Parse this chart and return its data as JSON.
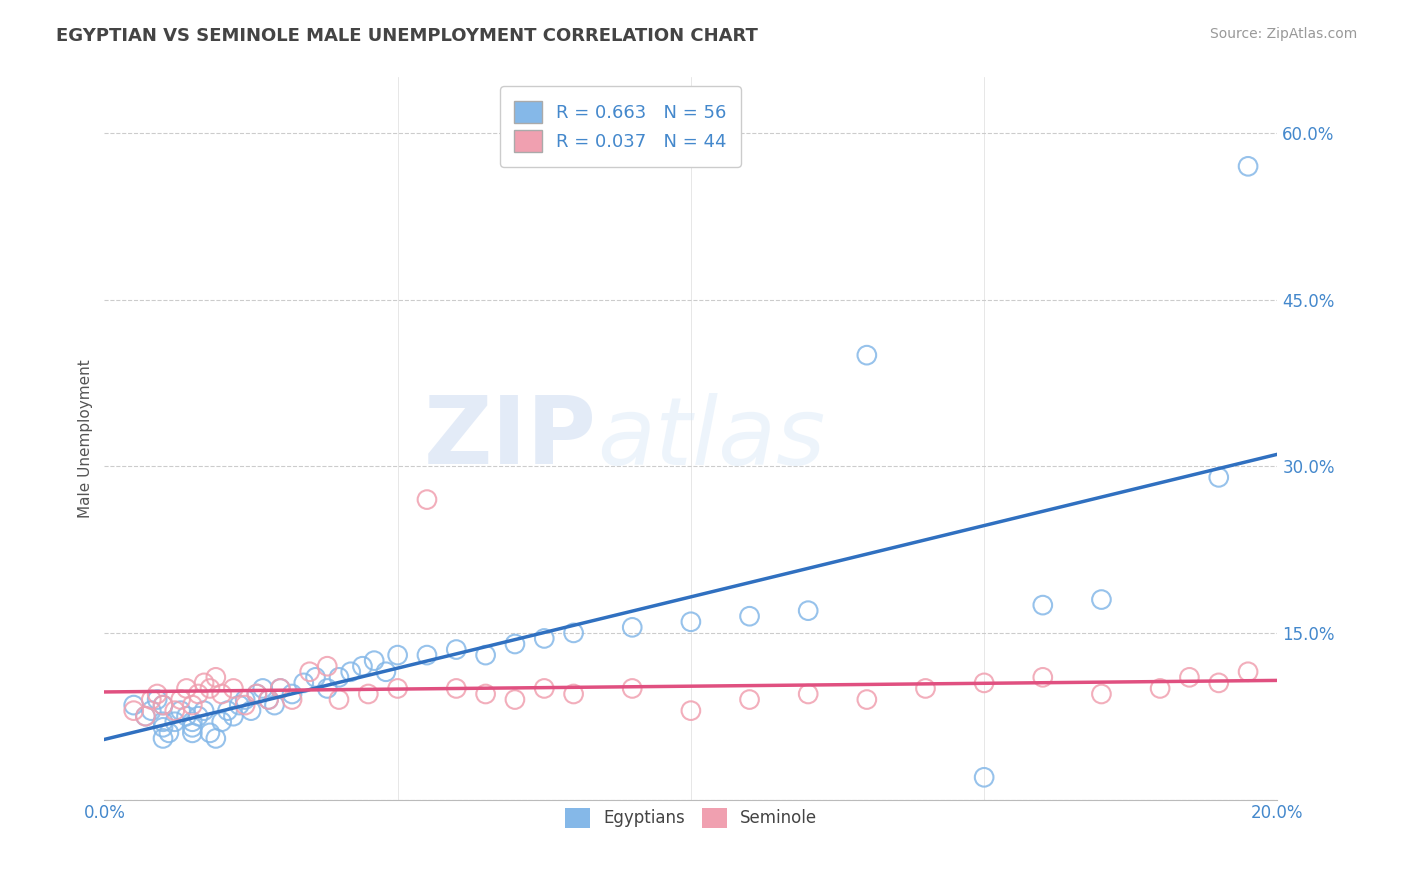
{
  "title": "EGYPTIAN VS SEMINOLE MALE UNEMPLOYMENT CORRELATION CHART",
  "source": "Source: ZipAtlas.com",
  "ylabel_label": "Male Unemployment",
  "xlim": [
    0.0,
    0.2
  ],
  "ylim": [
    0.0,
    0.65
  ],
  "yticks": [
    0.0,
    0.15,
    0.3,
    0.45,
    0.6
  ],
  "ytick_labels": [
    "",
    "15.0%",
    "30.0%",
    "45.0%",
    "60.0%"
  ],
  "xtick_labels": [
    "0.0%",
    "20.0%"
  ],
  "legend_label_1": "Egyptians",
  "legend_label_2": "Seminole",
  "color_blue": "#85b8e8",
  "color_pink": "#f0a0b0",
  "line_color_blue": "#3070c0",
  "line_color_pink": "#e05080",
  "R1": 0.663,
  "N1": 56,
  "R2": 0.037,
  "N2": 44,
  "watermark_zip": "ZIP",
  "watermark_atlas": "atlas",
  "background_color": "#ffffff",
  "grid_color": "#cccccc",
  "title_color": "#444444",
  "axis_label_color": "#555555",
  "tick_label_color_right": "#4488cc",
  "egyptians_x": [
    0.005,
    0.007,
    0.008,
    0.009,
    0.01,
    0.01,
    0.01,
    0.01,
    0.011,
    0.012,
    0.013,
    0.014,
    0.015,
    0.015,
    0.015,
    0.016,
    0.017,
    0.018,
    0.019,
    0.02,
    0.021,
    0.022,
    0.023,
    0.024,
    0.025,
    0.026,
    0.027,
    0.028,
    0.029,
    0.03,
    0.032,
    0.034,
    0.036,
    0.038,
    0.04,
    0.042,
    0.044,
    0.046,
    0.048,
    0.05,
    0.055,
    0.06,
    0.065,
    0.07,
    0.075,
    0.08,
    0.09,
    0.1,
    0.11,
    0.12,
    0.13,
    0.15,
    0.16,
    0.17,
    0.19,
    0.195
  ],
  "egyptians_y": [
    0.085,
    0.075,
    0.08,
    0.09,
    0.065,
    0.07,
    0.085,
    0.055,
    0.06,
    0.07,
    0.08,
    0.075,
    0.06,
    0.065,
    0.07,
    0.075,
    0.08,
    0.06,
    0.055,
    0.07,
    0.08,
    0.075,
    0.085,
    0.09,
    0.08,
    0.095,
    0.1,
    0.09,
    0.085,
    0.1,
    0.095,
    0.105,
    0.11,
    0.1,
    0.11,
    0.115,
    0.12,
    0.125,
    0.115,
    0.13,
    0.13,
    0.135,
    0.13,
    0.14,
    0.145,
    0.15,
    0.155,
    0.16,
    0.165,
    0.17,
    0.4,
    0.02,
    0.175,
    0.18,
    0.29,
    0.57
  ],
  "seminole_x": [
    0.005,
    0.007,
    0.008,
    0.009,
    0.01,
    0.012,
    0.013,
    0.014,
    0.015,
    0.016,
    0.017,
    0.018,
    0.019,
    0.02,
    0.022,
    0.024,
    0.026,
    0.028,
    0.03,
    0.032,
    0.035,
    0.038,
    0.04,
    0.045,
    0.05,
    0.055,
    0.06,
    0.065,
    0.07,
    0.075,
    0.08,
    0.09,
    0.1,
    0.11,
    0.12,
    0.13,
    0.14,
    0.15,
    0.16,
    0.17,
    0.18,
    0.185,
    0.19,
    0.195
  ],
  "seminole_y": [
    0.08,
    0.075,
    0.09,
    0.095,
    0.085,
    0.08,
    0.09,
    0.1,
    0.085,
    0.095,
    0.105,
    0.1,
    0.11,
    0.095,
    0.1,
    0.085,
    0.095,
    0.09,
    0.1,
    0.09,
    0.115,
    0.12,
    0.09,
    0.095,
    0.1,
    0.27,
    0.1,
    0.095,
    0.09,
    0.1,
    0.095,
    0.1,
    0.08,
    0.09,
    0.095,
    0.09,
    0.1,
    0.105,
    0.11,
    0.095,
    0.1,
    0.11,
    0.105,
    0.115
  ]
}
